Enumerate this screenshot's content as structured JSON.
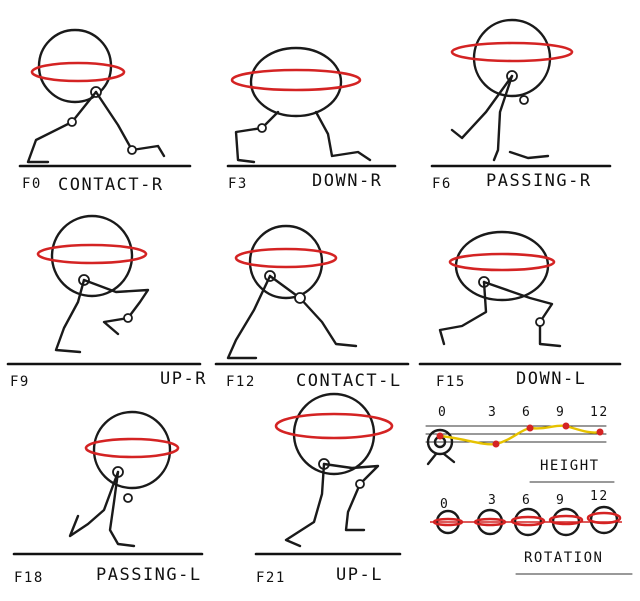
{
  "colors": {
    "ink": "#1a1a1a",
    "rotation_ring": "#d42323",
    "height_curve": "#e6c200",
    "height_point": "#d42323"
  },
  "poses": [
    {
      "frame": "F0",
      "name": "CONTACT-R"
    },
    {
      "frame": "F3",
      "name": "DOWN-R"
    },
    {
      "frame": "F6",
      "name": "PASSING-R"
    },
    {
      "frame": "F9",
      "name": "UP-R"
    },
    {
      "frame": "F12",
      "name": "CONTACT-L"
    },
    {
      "frame": "F15",
      "name": "DOWN-L"
    },
    {
      "frame": "F18",
      "name": "PASSING-L"
    },
    {
      "frame": "F21",
      "name": "UP-L"
    }
  ],
  "height_chart": {
    "label": "HEIGHT",
    "frame_ticks": [
      "0",
      "3",
      "6",
      "9",
      "12"
    ]
  },
  "rotation_chart": {
    "label": "ROTATION",
    "frame_ticks": [
      "0",
      "3",
      "6",
      "9",
      "12"
    ]
  }
}
